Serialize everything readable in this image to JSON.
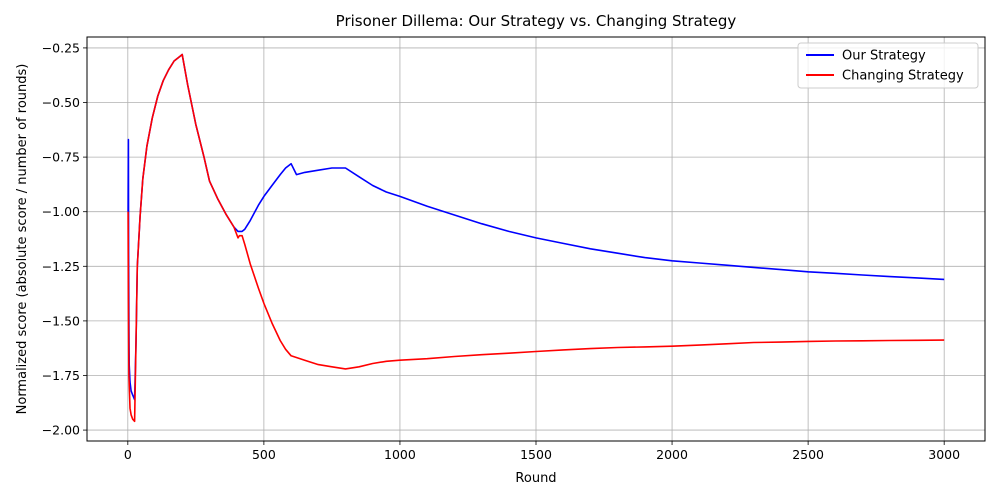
{
  "chart_data": {
    "type": "line",
    "title": "Prisoner Dillema: Our Strategy vs. Changing Strategy",
    "xlabel": "Round",
    "ylabel": "Normalized score (absolute score / number of rounds)",
    "xlim": [
      -150,
      3150
    ],
    "ylim": [
      -2.05,
      -0.2
    ],
    "xticks": [
      0,
      500,
      1000,
      1500,
      2000,
      2500,
      3000
    ],
    "yticks": [
      -2.0,
      -1.75,
      -1.5,
      -1.25,
      -1.0,
      -0.75,
      -0.5,
      -0.25
    ],
    "xtick_labels": [
      "0",
      "500",
      "1000",
      "1500",
      "2000",
      "2500",
      "3000"
    ],
    "ytick_labels": [
      "−2.00",
      "−1.75",
      "−1.50",
      "−1.25",
      "−1.00",
      "−0.75",
      "−0.50",
      "−0.25"
    ],
    "grid": true,
    "legend_position": "top-right",
    "series": [
      {
        "name": "Our Strategy",
        "color": "#0000ff",
        "x": [
          1,
          2,
          3,
          4,
          5,
          8,
          12,
          18,
          25,
          30,
          35,
          45,
          55,
          70,
          90,
          110,
          130,
          150,
          170,
          190,
          200,
          220,
          250,
          280,
          300,
          330,
          360,
          390,
          405,
          420,
          430,
          450,
          480,
          500,
          530,
          560,
          580,
          600,
          620,
          650,
          700,
          750,
          800,
          850,
          900,
          950,
          1000,
          1100,
          1200,
          1300,
          1400,
          1500,
          1600,
          1700,
          1800,
          1900,
          2000,
          2100,
          2200,
          2300,
          2400,
          2500,
          2600,
          2700,
          2800,
          2900,
          3000
        ],
        "y": [
          -1.0,
          -0.67,
          -1.2,
          -1.5,
          -1.7,
          -1.78,
          -1.82,
          -1.84,
          -1.86,
          -1.6,
          -1.25,
          -1.02,
          -0.85,
          -0.7,
          -0.57,
          -0.47,
          -0.4,
          -0.35,
          -0.31,
          -0.29,
          -0.28,
          -0.42,
          -0.6,
          -0.75,
          -0.86,
          -0.94,
          -1.01,
          -1.07,
          -1.09,
          -1.09,
          -1.08,
          -1.04,
          -0.97,
          -0.93,
          -0.88,
          -0.83,
          -0.8,
          -0.78,
          -0.83,
          -0.82,
          -0.81,
          -0.8,
          -0.8,
          -0.84,
          -0.88,
          -0.91,
          -0.93,
          -0.975,
          -1.015,
          -1.055,
          -1.09,
          -1.12,
          -1.145,
          -1.17,
          -1.19,
          -1.21,
          -1.225,
          -1.235,
          -1.245,
          -1.255,
          -1.265,
          -1.275,
          -1.282,
          -1.29,
          -1.297,
          -1.303,
          -1.31
        ]
      },
      {
        "name": "Changing Strategy",
        "color": "#ff0000",
        "x": [
          1,
          2,
          4,
          8,
          12,
          18,
          25,
          30,
          35,
          45,
          55,
          70,
          90,
          110,
          130,
          150,
          170,
          190,
          200,
          220,
          250,
          280,
          300,
          330,
          360,
          390,
          405,
          410,
          420,
          430,
          450,
          480,
          500,
          530,
          560,
          580,
          600,
          650,
          700,
          750,
          800,
          850,
          900,
          950,
          1000,
          1100,
          1200,
          1300,
          1400,
          1500,
          1600,
          1700,
          1800,
          1900,
          2000,
          2100,
          2200,
          2300,
          2400,
          2500,
          2600,
          2700,
          2800,
          2900,
          3000
        ],
        "y": [
          -1.0,
          -1.4,
          -1.75,
          -1.9,
          -1.93,
          -1.95,
          -1.96,
          -1.6,
          -1.25,
          -1.02,
          -0.85,
          -0.7,
          -0.57,
          -0.47,
          -0.4,
          -0.35,
          -0.31,
          -0.29,
          -0.28,
          -0.42,
          -0.6,
          -0.75,
          -0.86,
          -0.94,
          -1.01,
          -1.07,
          -1.12,
          -1.11,
          -1.11,
          -1.15,
          -1.24,
          -1.35,
          -1.42,
          -1.51,
          -1.59,
          -1.63,
          -1.66,
          -1.68,
          -1.7,
          -1.71,
          -1.72,
          -1.71,
          -1.695,
          -1.685,
          -1.68,
          -1.673,
          -1.663,
          -1.655,
          -1.648,
          -1.64,
          -1.633,
          -1.627,
          -1.622,
          -1.619,
          -1.616,
          -1.611,
          -1.605,
          -1.599,
          -1.597,
          -1.594,
          -1.592,
          -1.591,
          -1.59,
          -1.589,
          -1.588
        ]
      }
    ]
  }
}
